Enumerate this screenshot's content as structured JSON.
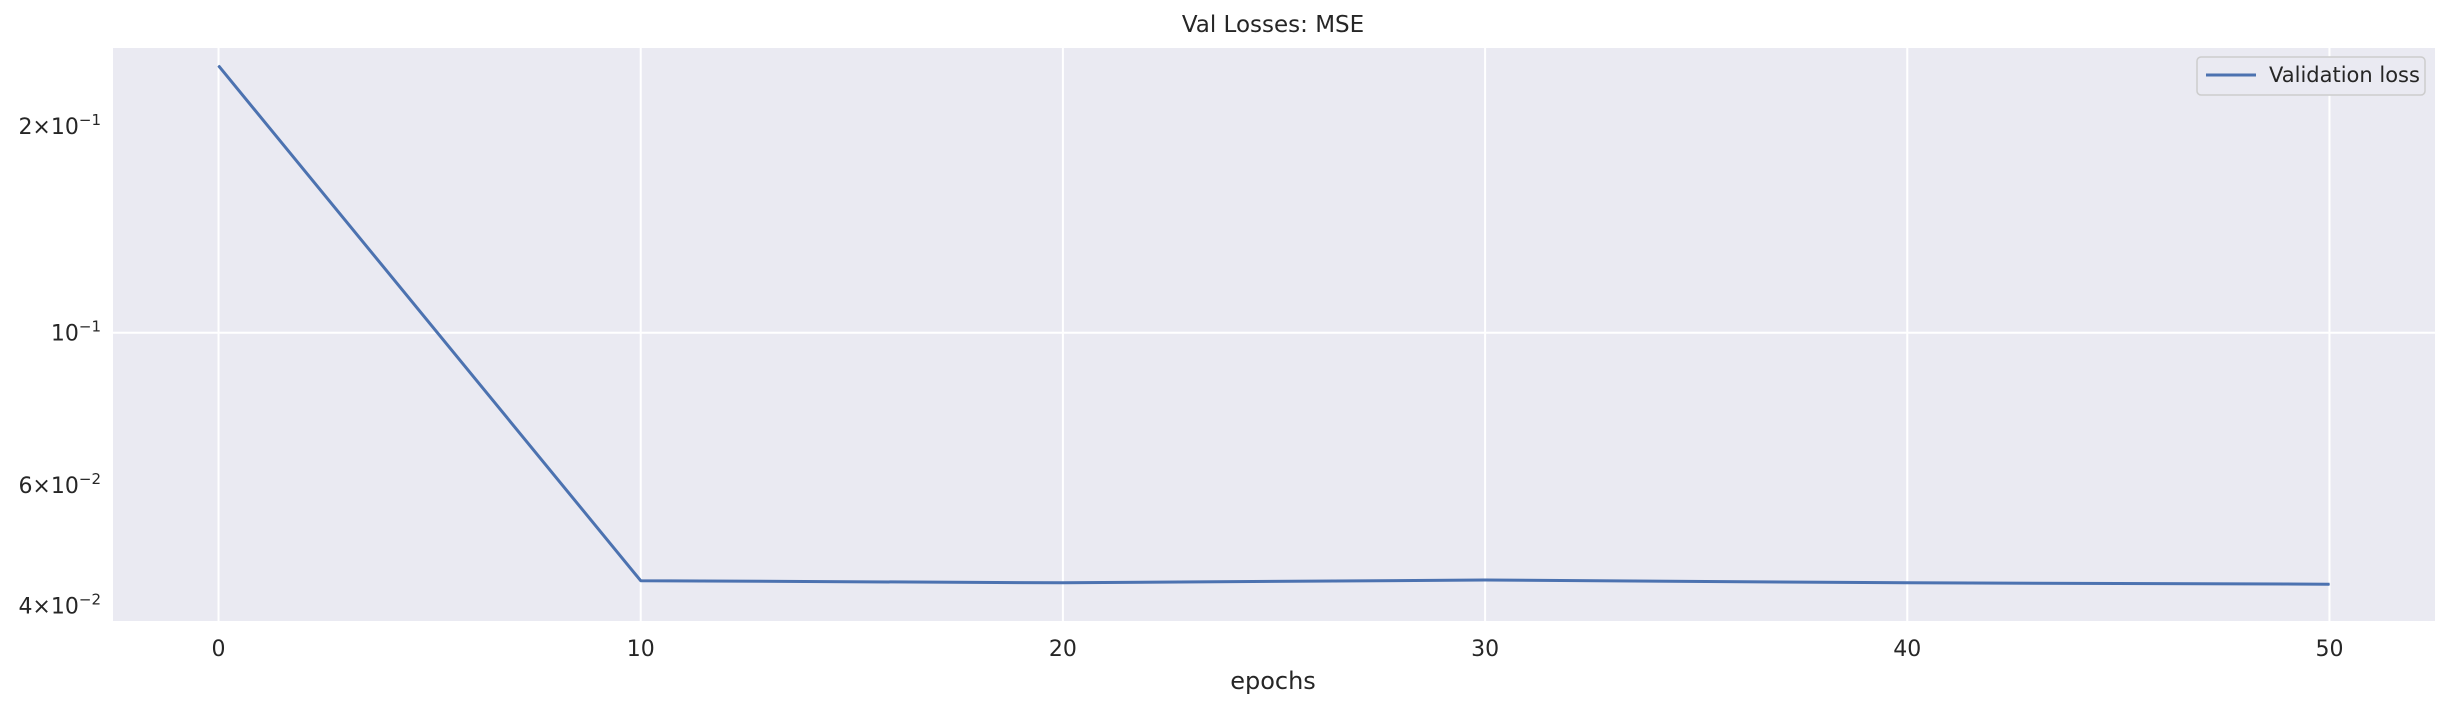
{
  "chart_data": {
    "type": "line",
    "title": "Val Losses:  MSE",
    "xlabel": "epochs",
    "ylabel": "",
    "yscale": "log",
    "xlim": [
      -2.5,
      52.5
    ],
    "ylim": [
      0.038,
      0.26
    ],
    "x_ticks": [
      0,
      10,
      20,
      30,
      40,
      50
    ],
    "x_tick_labels": [
      "0",
      "10",
      "20",
      "30",
      "40",
      "50"
    ],
    "y_ticks": [
      {
        "value": 0.2,
        "mantissa": "2",
        "exponent": "−1"
      },
      {
        "value": 0.1,
        "mantissa": "",
        "exponent": "−1"
      },
      {
        "value": 0.06,
        "mantissa": "6",
        "exponent": "−2"
      },
      {
        "value": 0.04,
        "mantissa": "4",
        "exponent": "−2"
      }
    ],
    "grid": true,
    "legend_position": "top-right",
    "series": [
      {
        "name": "Validation loss",
        "color": "#4c72b0",
        "x": [
          0,
          10,
          20,
          30,
          40,
          50
        ],
        "values": [
          0.245,
          0.0435,
          0.0432,
          0.0436,
          0.0432,
          0.043
        ]
      }
    ]
  },
  "colors": {
    "plot_background": "#eaeaf2",
    "grid": "#ffffff",
    "text": "#262626"
  }
}
